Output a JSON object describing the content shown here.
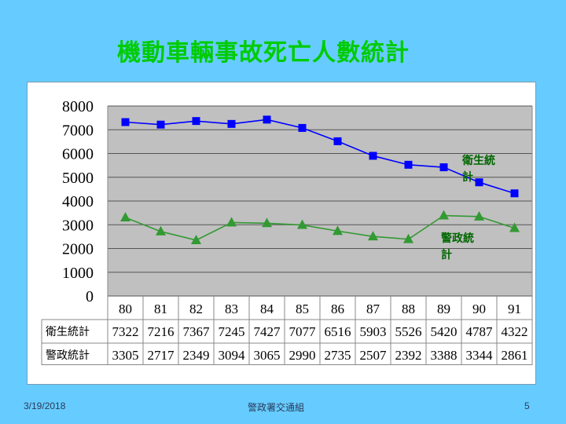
{
  "slide": {
    "title": "機動車輛事故死亡人數統計",
    "footer_date": "3/19/2018",
    "footer_org": "警政署交通組",
    "page_number": "5"
  },
  "colors": {
    "background": "#66ccff",
    "title": "#00cc00",
    "plot_area": "#c0c0c0",
    "series_health": "#0000ff",
    "series_police": "#339933",
    "series_label": "#006600"
  },
  "chart_data": {
    "type": "line",
    "title": "",
    "xlabel": "",
    "ylabel": "",
    "ylim": [
      0,
      8000
    ],
    "yticks": [
      "0",
      "1000",
      "2000",
      "3000",
      "4000",
      "5000",
      "6000",
      "7000",
      "8000"
    ],
    "grid": true,
    "legend": "none",
    "categories": [
      "80",
      "81",
      "82",
      "83",
      "84",
      "85",
      "86",
      "87",
      "88",
      "89",
      "90",
      "91"
    ],
    "series": [
      {
        "name": "衛生統計",
        "label_lines": [
          "衛生統",
          "計"
        ],
        "marker": "square",
        "values": [
          7322,
          7216,
          7367,
          7245,
          7427,
          7077,
          6516,
          5903,
          5526,
          5420,
          4787,
          4322
        ]
      },
      {
        "name": "警政統計",
        "label_lines": [
          "警政統",
          "計"
        ],
        "marker": "triangle",
        "values": [
          3305,
          2717,
          2349,
          3094,
          3065,
          2990,
          2735,
          2507,
          2392,
          3388,
          3344,
          2861
        ]
      }
    ]
  }
}
